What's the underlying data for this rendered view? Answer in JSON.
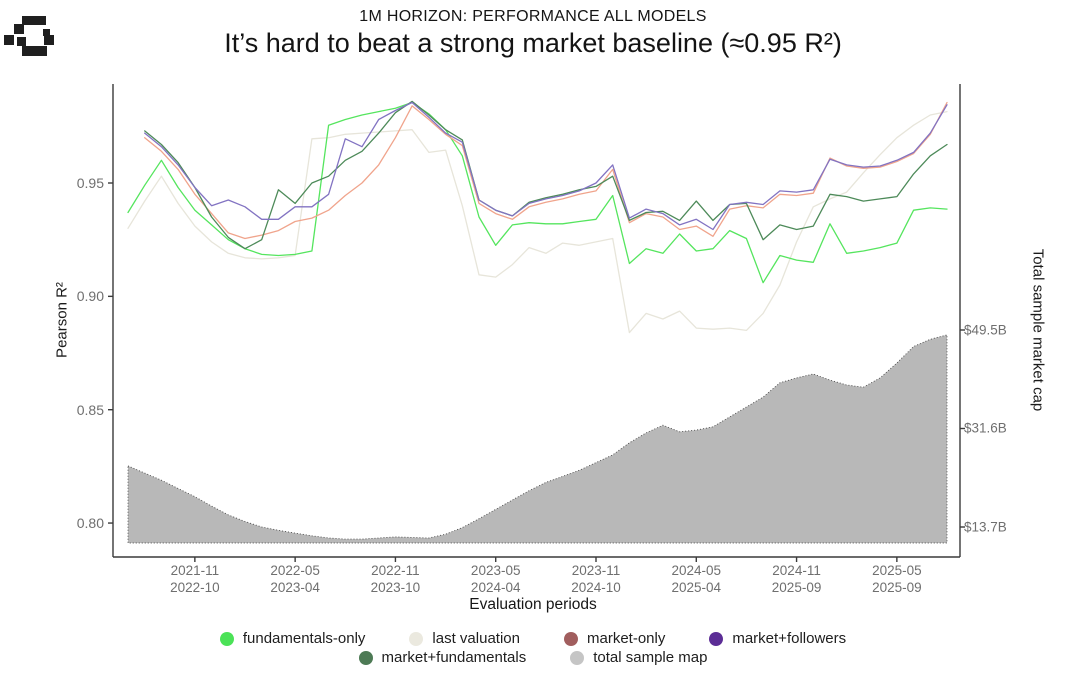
{
  "header": {
    "kicker": "1M HORIZON: PERFORMANCE ALL MODELS",
    "title": "It’s hard to beat a strong market baseline (≈0.95 R²)"
  },
  "axes": {
    "y_left": {
      "label": "Pearson R²",
      "ticks": [
        "0.95",
        "0.90",
        "0.85",
        "0.80"
      ],
      "tick_values": [
        0.95,
        0.9,
        0.85,
        0.8
      ]
    },
    "y_right": {
      "label": "Total sample market cap",
      "ticks": [
        "$49.5B",
        "$31.6B",
        "$13.7B"
      ],
      "tick_values": [
        49.5,
        31.6,
        13.7
      ]
    },
    "x": {
      "label": "Evaluation periods",
      "ticks": [
        {
          "line1": "2021-11",
          "line2": "2022-10"
        },
        {
          "line1": "2022-05",
          "line2": "2023-04"
        },
        {
          "line1": "2022-11",
          "line2": "2023-10"
        },
        {
          "line1": "2023-05",
          "line2": "2024-04"
        },
        {
          "line1": "2023-11",
          "line2": "2024-10"
        },
        {
          "line1": "2024-05",
          "line2": "2025-04"
        },
        {
          "line1": "2024-11",
          "line2": "2025-09"
        },
        {
          "line1": "2025-05",
          "line2": "2025-09"
        }
      ],
      "tick_months": [
        4,
        10,
        16,
        22,
        28,
        34,
        40,
        46
      ]
    }
  },
  "legend": {
    "rows": [
      [
        {
          "label": "fundamentals-only",
          "color": "#4be257"
        },
        {
          "label": "last valuation",
          "color": "#ebe9df"
        },
        {
          "label": "market-only",
          "color": "#a15e5e"
        },
        {
          "label": "market+followers",
          "color": "#5c2d96"
        }
      ],
      [
        {
          "label": "market+fundamentals",
          "color": "#4d7a55"
        },
        {
          "label": "total sample map",
          "color": "#c5c5c5"
        }
      ]
    ]
  },
  "chart_data": {
    "type": "line+area",
    "title": "1M HORIZON: PERFORMANCE ALL MODELS",
    "subtitle": "It’s hard to beat a strong market baseline (≈0.95 R²)",
    "xlabel": "Evaluation periods",
    "ylabel_left": "Pearson R²",
    "ylabel_right": "Total sample market cap",
    "n_points": 50,
    "x_description": "monthly evaluation windows from 2021-11/2022-10 through 2025-05/2025-09, ticks every 6 months",
    "y_left_range": [
      0.784,
      0.99
    ],
    "y_right_range_billions": [
      10.8,
      50.5
    ],
    "grid": false,
    "legend_position": "bottom",
    "series": [
      {
        "name": "last valuation",
        "line_color": "#e7e5da",
        "axis": "left",
        "values": [
          0.93,
          0.942,
          0.953,
          0.941,
          0.931,
          0.924,
          0.919,
          0.917,
          0.9165,
          0.917,
          0.918,
          0.9695,
          0.97,
          0.9715,
          0.972,
          0.9725,
          0.973,
          0.9735,
          0.9635,
          0.9645,
          0.94,
          0.9095,
          0.9085,
          0.914,
          0.9215,
          0.919,
          0.9235,
          0.9225,
          0.924,
          0.9255,
          0.884,
          0.8925,
          0.89,
          0.8935,
          0.886,
          0.8855,
          0.886,
          0.885,
          0.8925,
          0.905,
          0.924,
          0.9395,
          0.943,
          0.946,
          0.9545,
          0.9625,
          0.97,
          0.9755,
          0.98,
          0.9815
        ]
      },
      {
        "name": "fundamentals-only",
        "line_color": "#55e55e",
        "axis": "left",
        "values": [
          0.937,
          0.949,
          0.96,
          0.948,
          0.938,
          0.9315,
          0.925,
          0.921,
          0.9185,
          0.918,
          0.9185,
          0.92,
          0.9755,
          0.978,
          0.98,
          0.9815,
          0.983,
          0.9855,
          0.9805,
          0.9735,
          0.962,
          0.935,
          0.9225,
          0.9315,
          0.9325,
          0.932,
          0.932,
          0.933,
          0.934,
          0.9445,
          0.9145,
          0.921,
          0.919,
          0.9275,
          0.92,
          0.921,
          0.929,
          0.9255,
          0.906,
          0.918,
          0.916,
          0.915,
          0.932,
          0.919,
          0.92,
          0.9215,
          0.9235,
          0.938,
          0.939,
          0.9385
        ]
      },
      {
        "name": "market-only",
        "line_color": "#f0a48c",
        "axis": "left",
        "values": [
          null,
          0.97,
          0.964,
          0.956,
          0.945,
          0.9365,
          0.928,
          0.9255,
          0.927,
          0.929,
          0.933,
          0.9345,
          0.938,
          0.9445,
          0.95,
          0.958,
          0.97,
          0.984,
          0.978,
          0.9715,
          0.9665,
          0.941,
          0.9365,
          0.934,
          0.9395,
          0.9415,
          0.943,
          0.945,
          0.9465,
          0.956,
          0.9325,
          0.9365,
          0.935,
          0.9295,
          0.931,
          0.9265,
          0.9385,
          0.94,
          0.939,
          0.945,
          0.9445,
          0.9455,
          0.961,
          0.9575,
          0.9565,
          0.957,
          0.9595,
          0.963,
          0.9715,
          0.9855
        ]
      },
      {
        "name": "market+fundamentals",
        "line_color": "#4d8a59",
        "axis": "left",
        "values": [
          null,
          0.973,
          0.967,
          0.959,
          0.948,
          0.935,
          0.926,
          0.921,
          0.925,
          0.947,
          0.941,
          0.95,
          0.953,
          0.96,
          0.964,
          0.972,
          0.981,
          0.986,
          0.98,
          0.9735,
          0.969,
          0.9425,
          0.938,
          0.9355,
          0.9415,
          0.9435,
          0.945,
          0.947,
          0.9485,
          0.953,
          0.9335,
          0.937,
          0.9375,
          0.9335,
          0.942,
          0.9335,
          0.9405,
          0.941,
          0.925,
          0.9315,
          0.9295,
          0.931,
          0.945,
          0.944,
          0.942,
          0.943,
          0.944,
          0.954,
          0.962,
          0.967
        ]
      },
      {
        "name": "market+followers",
        "line_color": "#8273c2",
        "axis": "left",
        "values": [
          null,
          0.972,
          0.966,
          0.958,
          0.948,
          0.94,
          0.9425,
          0.9395,
          0.934,
          0.934,
          0.9395,
          0.9395,
          0.945,
          0.9695,
          0.966,
          0.978,
          0.982,
          0.9855,
          0.979,
          0.972,
          0.968,
          0.9425,
          0.938,
          0.9355,
          0.941,
          0.943,
          0.9445,
          0.9465,
          0.95,
          0.958,
          0.9345,
          0.9385,
          0.9365,
          0.9315,
          0.934,
          0.9295,
          0.9405,
          0.9415,
          0.9405,
          0.9465,
          0.946,
          0.947,
          0.9605,
          0.958,
          0.957,
          0.9575,
          0.96,
          0.9635,
          0.972,
          0.9845
        ]
      }
    ],
    "area": {
      "name": "total sample map",
      "units": "billions USD",
      "fill_color": "#b8b8b8",
      "edge_style": "dotted",
      "axis": "right",
      "baseline_billions": 10.8,
      "values": [
        24.8,
        23.5,
        22.2,
        20.7,
        19.2,
        17.5,
        15.9,
        14.7,
        13.7,
        13.1,
        12.6,
        12.1,
        11.7,
        11.5,
        11.5,
        11.7,
        11.9,
        11.8,
        11.7,
        12.4,
        13.6,
        15.2,
        16.9,
        18.6,
        20.3,
        21.8,
        22.9,
        24.0,
        25.4,
        26.8,
        29.0,
        30.8,
        32.2,
        31.0,
        31.3,
        31.9,
        33.7,
        35.5,
        37.3,
        39.9,
        40.8,
        41.5,
        40.4,
        39.5,
        39.1,
        40.8,
        43.5,
        46.5,
        47.8,
        48.6
      ]
    }
  }
}
